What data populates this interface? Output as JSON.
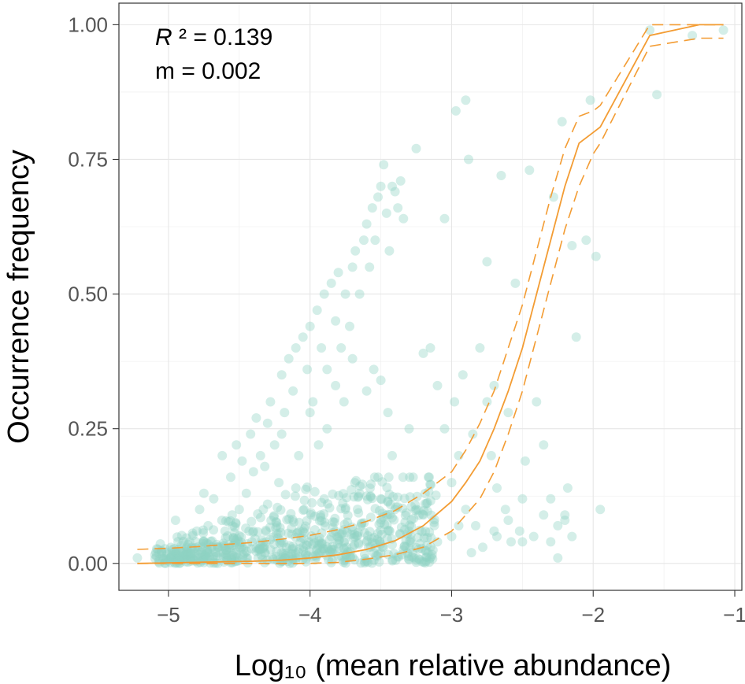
{
  "chart_data": {
    "type": "scatter",
    "title": "",
    "xlabel": "Log₁₀ (mean relative abundance)",
    "ylabel": "Occurrence frequency",
    "xlim": [
      -5.35,
      -0.95
    ],
    "ylim": [
      -0.05,
      1.04
    ],
    "x_ticks": [
      -5,
      -4,
      -3,
      -2,
      -1
    ],
    "x_tick_labels": [
      "−5",
      "−4",
      "−3",
      "−2",
      "−1"
    ],
    "y_ticks": [
      0,
      0.25,
      0.5,
      0.75,
      1.0
    ],
    "y_tick_labels": [
      "0.00",
      "0.25",
      "0.50",
      "0.75",
      "1.00"
    ],
    "grid": true,
    "annotations": {
      "r2_symbol": "R",
      "r2_rest": " ² = 0.139",
      "m_text": "m = 0.002"
    },
    "colors": {
      "points": "#8fd3c3",
      "fit": "#f39c33"
    },
    "fit": {
      "x": [
        -5.22,
        -5.0,
        -4.8,
        -4.6,
        -4.4,
        -4.2,
        -4.0,
        -3.8,
        -3.6,
        -3.4,
        -3.2,
        -3.0,
        -2.9,
        -2.8,
        -2.7,
        -2.6,
        -2.5,
        -2.4,
        -2.3,
        -2.2,
        -2.1,
        -2.0,
        -1.95,
        -1.6,
        -1.25,
        -1.08
      ],
      "y": [
        0.0,
        0.001,
        0.002,
        0.003,
        0.004,
        0.006,
        0.01,
        0.016,
        0.026,
        0.042,
        0.07,
        0.115,
        0.15,
        0.19,
        0.25,
        0.32,
        0.4,
        0.5,
        0.6,
        0.7,
        0.78,
        0.8,
        0.81,
        0.98,
        1.0,
        1.0
      ]
    },
    "ci_upper": {
      "x": [
        -5.22,
        -5.0,
        -4.8,
        -4.6,
        -4.4,
        -4.2,
        -4.0,
        -3.8,
        -3.6,
        -3.4,
        -3.2,
        -3.0,
        -2.9,
        -2.8,
        -2.7,
        -2.6,
        -2.5,
        -2.4,
        -2.3,
        -2.2,
        -2.1,
        -2.0,
        -1.95,
        -1.6,
        -1.25,
        -1.08
      ],
      "y": [
        0.026,
        0.028,
        0.031,
        0.035,
        0.039,
        0.045,
        0.052,
        0.063,
        0.078,
        0.098,
        0.13,
        0.17,
        0.21,
        0.26,
        0.32,
        0.4,
        0.48,
        0.58,
        0.68,
        0.77,
        0.83,
        0.84,
        0.85,
        1.0,
        1.0,
        1.0
      ]
    },
    "ci_lower": {
      "x": [
        -5.22,
        -5.0,
        -4.8,
        -4.6,
        -4.4,
        -4.2,
        -4.0,
        -3.8,
        -3.6,
        -3.4,
        -3.2,
        -3.0,
        -2.9,
        -2.8,
        -2.7,
        -2.6,
        -2.5,
        -2.4,
        -2.3,
        -2.2,
        -2.1,
        -2.0,
        -1.95,
        -1.6,
        -1.25,
        -1.08
      ],
      "y": [
        0.0,
        0.0,
        0.0,
        0.0,
        0.0,
        0.0,
        0.0,
        0.002,
        0.008,
        0.016,
        0.03,
        0.06,
        0.09,
        0.12,
        0.17,
        0.24,
        0.32,
        0.42,
        0.52,
        0.62,
        0.7,
        0.76,
        0.78,
        0.96,
        0.975,
        0.975
      ]
    },
    "points": [
      [
        -5.22,
        0.01
      ],
      [
        -5.02,
        0.0
      ],
      [
        -4.95,
        0.08
      ],
      [
        -4.9,
        0.02
      ],
      [
        -4.85,
        0.04
      ],
      [
        -4.8,
        0.06
      ],
      [
        -4.78,
        0.1
      ],
      [
        -4.75,
        0.13
      ],
      [
        -4.7,
        0.03
      ],
      [
        -4.68,
        0.12
      ],
      [
        -4.62,
        0.2
      ],
      [
        -4.6,
        0.06
      ],
      [
        -4.56,
        0.16
      ],
      [
        -4.52,
        0.22
      ],
      [
        -4.5,
        0.1
      ],
      [
        -4.48,
        0.19
      ],
      [
        -4.45,
        0.13
      ],
      [
        -4.42,
        0.24
      ],
      [
        -4.4,
        0.17
      ],
      [
        -4.38,
        0.27
      ],
      [
        -4.35,
        0.2
      ],
      [
        -4.33,
        0.1
      ],
      [
        -4.3,
        0.26
      ],
      [
        -4.28,
        0.3
      ],
      [
        -4.25,
        0.22
      ],
      [
        -4.22,
        0.15
      ],
      [
        -4.2,
        0.35
      ],
      [
        -4.18,
        0.28
      ],
      [
        -4.15,
        0.38
      ],
      [
        -4.12,
        0.32
      ],
      [
        -4.1,
        0.4
      ],
      [
        -4.08,
        0.2
      ],
      [
        -4.05,
        0.42
      ],
      [
        -4.02,
        0.36
      ],
      [
        -4.0,
        0.44
      ],
      [
        -3.98,
        0.3
      ],
      [
        -3.95,
        0.47
      ],
      [
        -3.92,
        0.4
      ],
      [
        -3.9,
        0.5
      ],
      [
        -3.88,
        0.36
      ],
      [
        -3.85,
        0.52
      ],
      [
        -3.82,
        0.45
      ],
      [
        -3.8,
        0.54
      ],
      [
        -3.78,
        0.4
      ],
      [
        -3.75,
        0.5
      ],
      [
        -3.72,
        0.44
      ],
      [
        -3.7,
        0.55
      ],
      [
        -3.68,
        0.58
      ],
      [
        -3.65,
        0.5
      ],
      [
        -3.62,
        0.6
      ],
      [
        -3.6,
        0.63
      ],
      [
        -3.58,
        0.55
      ],
      [
        -3.56,
        0.66
      ],
      [
        -3.54,
        0.6
      ],
      [
        -3.52,
        0.68
      ],
      [
        -3.5,
        0.7
      ],
      [
        -3.48,
        0.74
      ],
      [
        -3.46,
        0.65
      ],
      [
        -3.44,
        0.58
      ],
      [
        -3.42,
        0.7
      ],
      [
        -3.4,
        0.69
      ],
      [
        -3.38,
        0.66
      ],
      [
        -3.36,
        0.71
      ],
      [
        -3.34,
        0.64
      ],
      [
        -3.82,
        0.33
      ],
      [
        -3.76,
        0.3
      ],
      [
        -3.7,
        0.38
      ],
      [
        -3.6,
        0.32
      ],
      [
        -3.55,
        0.36
      ],
      [
        -3.5,
        0.34
      ],
      [
        -3.45,
        0.28
      ],
      [
        -3.88,
        0.25
      ],
      [
        -4.0,
        0.28
      ],
      [
        -4.2,
        0.24
      ],
      [
        -4.32,
        0.18
      ],
      [
        -3.94,
        0.22
      ],
      [
        -3.42,
        0.2
      ],
      [
        -3.3,
        0.25
      ],
      [
        -3.25,
        0.1
      ],
      [
        -3.2,
        0.39
      ],
      [
        -3.15,
        0.4
      ],
      [
        -3.1,
        0.33
      ],
      [
        -3.05,
        0.25
      ],
      [
        -3.0,
        0.15
      ],
      [
        -2.98,
        0.3
      ],
      [
        -2.95,
        0.2
      ],
      [
        -2.92,
        0.35
      ],
      [
        -2.9,
        0.1
      ],
      [
        -2.88,
        0.75
      ],
      [
        -2.85,
        0.24
      ],
      [
        -2.8,
        0.4
      ],
      [
        -2.75,
        0.56
      ],
      [
        -2.72,
        0.2
      ],
      [
        -2.7,
        0.33
      ],
      [
        -2.68,
        0.14
      ],
      [
        -2.65,
        0.72
      ],
      [
        -2.6,
        0.28
      ],
      [
        -2.55,
        0.52
      ],
      [
        -2.5,
        0.12
      ],
      [
        -2.45,
        0.73
      ],
      [
        -2.4,
        0.3
      ],
      [
        -2.35,
        0.22
      ],
      [
        -2.3,
        0.12
      ],
      [
        -2.28,
        0.68
      ],
      [
        -2.25,
        0.07
      ],
      [
        -2.22,
        0.82
      ],
      [
        -2.2,
        0.09
      ],
      [
        -2.18,
        0.14
      ],
      [
        -2.15,
        0.59
      ],
      [
        -2.12,
        0.42
      ],
      [
        -2.05,
        0.6
      ],
      [
        -2.02,
        0.86
      ],
      [
        -1.98,
        0.57
      ],
      [
        -1.95,
        0.1
      ],
      [
        -1.55,
        0.87
      ],
      [
        -1.3,
        0.98
      ],
      [
        -1.08,
        0.99
      ],
      [
        -1.6,
        0.99
      ],
      [
        -3.25,
        0.77
      ],
      [
        -3.05,
        0.64
      ],
      [
        -2.97,
        0.84
      ],
      [
        -2.9,
        0.86
      ],
      [
        -2.75,
        0.3
      ],
      [
        -2.68,
        0.05
      ],
      [
        -2.6,
        0.08
      ],
      [
        -2.5,
        0.04
      ],
      [
        -2.42,
        0.05
      ],
      [
        -2.35,
        0.09
      ],
      [
        -2.3,
        0.04
      ],
      [
        -2.25,
        0.01
      ],
      [
        -2.2,
        0.08
      ],
      [
        -2.15,
        0.05
      ],
      [
        -2.48,
        0.19
      ],
      [
        -2.52,
        0.06
      ],
      [
        -2.58,
        0.04
      ],
      [
        -2.62,
        0.1
      ],
      [
        -2.7,
        0.06
      ],
      [
        -2.78,
        0.03
      ],
      [
        -2.83,
        0.07
      ],
      [
        -2.86,
        0.02
      ],
      [
        -3.65,
        0.13
      ],
      [
        -3.5,
        0.12
      ],
      [
        -3.4,
        0.1
      ],
      [
        -3.3,
        0.06
      ],
      [
        -3.2,
        0.09
      ],
      [
        -3.1,
        0.04
      ],
      [
        -3.0,
        0.05
      ],
      [
        -2.95,
        0.07
      ],
      [
        -4.55,
        0.09
      ],
      [
        -4.3,
        0.11
      ],
      [
        -4.1,
        0.14
      ],
      [
        -3.9,
        0.12
      ],
      [
        -3.75,
        0.1
      ],
      [
        -4.4,
        0.06
      ],
      [
        -4.6,
        0.03
      ],
      [
        -4.72,
        0.07
      ],
      [
        -4.2,
        0.02
      ],
      [
        -4.05,
        0.06
      ],
      [
        -3.85,
        0.05
      ],
      [
        -3.7,
        0.03
      ],
      [
        -3.6,
        0.04
      ],
      [
        -3.55,
        0.02
      ],
      [
        -4.45,
        0.01
      ],
      [
        -4.65,
        0.0
      ]
    ]
  }
}
